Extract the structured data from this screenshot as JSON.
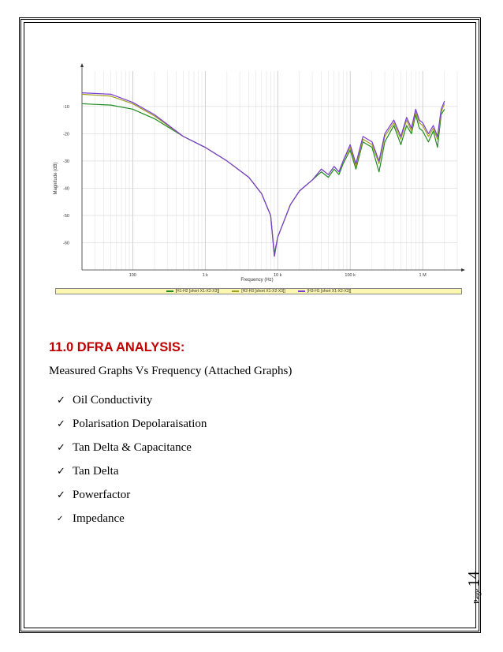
{
  "page": {
    "word": "Page",
    "number": "14"
  },
  "chart_data": {
    "type": "line",
    "xscale": "log",
    "xlim": [
      20,
      3000000
    ],
    "ylim": [
      -70,
      3
    ],
    "xlabel": "Frequency (Hz)",
    "ylabel": "Magnitude (dB)",
    "xticks": [
      100,
      1000,
      10000,
      100000,
      1000000
    ],
    "xtick_labels": [
      "100",
      "1 k",
      "10 k",
      "100 k",
      "1 M"
    ],
    "yticks": [
      -10,
      -20,
      -30,
      -40,
      -50,
      -60
    ],
    "ytick_labels": [
      "-10",
      "-20",
      "-30",
      "-40",
      "-50",
      "-60"
    ],
    "grid": true,
    "legend_position": "bottom",
    "series": [
      {
        "name": "[H1-H2 [short X1-X2-X3]]",
        "color": "#1e8a1e",
        "points": [
          [
            20,
            -9
          ],
          [
            50,
            -9.5
          ],
          [
            100,
            -11
          ],
          [
            200,
            -14.5
          ],
          [
            500,
            -21
          ],
          [
            1000,
            -25
          ],
          [
            2000,
            -30
          ],
          [
            4000,
            -36
          ],
          [
            6000,
            -42
          ],
          [
            8000,
            -50
          ],
          [
            9000,
            -64
          ],
          [
            10000,
            -58
          ],
          [
            15000,
            -46
          ],
          [
            20000,
            -41
          ],
          [
            30000,
            -37
          ],
          [
            40000,
            -34
          ],
          [
            50000,
            -36
          ],
          [
            60000,
            -33
          ],
          [
            70000,
            -35
          ],
          [
            80000,
            -31
          ],
          [
            100000,
            -26
          ],
          [
            120000,
            -33
          ],
          [
            150000,
            -23
          ],
          [
            200000,
            -25
          ],
          [
            250000,
            -34
          ],
          [
            300000,
            -23
          ],
          [
            400000,
            -17
          ],
          [
            500000,
            -24
          ],
          [
            600000,
            -17
          ],
          [
            700000,
            -20
          ],
          [
            800000,
            -13
          ],
          [
            900000,
            -18
          ],
          [
            1000000,
            -19
          ],
          [
            1200000,
            -23
          ],
          [
            1400000,
            -19
          ],
          [
            1600000,
            -25
          ],
          [
            1800000,
            -13
          ],
          [
            2000000,
            -11
          ]
        ]
      },
      {
        "name": "[H2-H3 [short X1-X2-X3]]",
        "color": "#a0a020",
        "points": [
          [
            20,
            -5.5
          ],
          [
            50,
            -6.2
          ],
          [
            100,
            -9
          ],
          [
            200,
            -13.5
          ],
          [
            500,
            -21
          ],
          [
            1000,
            -25
          ],
          [
            2000,
            -30
          ],
          [
            4000,
            -36
          ],
          [
            6000,
            -42
          ],
          [
            8000,
            -50
          ],
          [
            9000,
            -65
          ],
          [
            10000,
            -58
          ],
          [
            15000,
            -46
          ],
          [
            20000,
            -41
          ],
          [
            30000,
            -37
          ],
          [
            40000,
            -33
          ],
          [
            50000,
            -35
          ],
          [
            60000,
            -32
          ],
          [
            70000,
            -34
          ],
          [
            80000,
            -30
          ],
          [
            100000,
            -25
          ],
          [
            120000,
            -32
          ],
          [
            150000,
            -22
          ],
          [
            200000,
            -24
          ],
          [
            250000,
            -31
          ],
          [
            300000,
            -21
          ],
          [
            400000,
            -16
          ],
          [
            500000,
            -22
          ],
          [
            600000,
            -15
          ],
          [
            700000,
            -19
          ],
          [
            800000,
            -12
          ],
          [
            900000,
            -16
          ],
          [
            1000000,
            -17
          ],
          [
            1200000,
            -21
          ],
          [
            1400000,
            -18
          ],
          [
            1600000,
            -22
          ],
          [
            1800000,
            -12
          ],
          [
            2000000,
            -9
          ]
        ]
      },
      {
        "name": "[H3-H1 [short X1-X2-X3]]",
        "color": "#7a3cd6",
        "points": [
          [
            20,
            -5
          ],
          [
            50,
            -5.5
          ],
          [
            100,
            -8.5
          ],
          [
            200,
            -13
          ],
          [
            500,
            -21
          ],
          [
            1000,
            -25
          ],
          [
            2000,
            -30
          ],
          [
            4000,
            -36
          ],
          [
            6000,
            -42
          ],
          [
            8000,
            -50
          ],
          [
            9000,
            -65
          ],
          [
            10000,
            -58
          ],
          [
            15000,
            -46
          ],
          [
            20000,
            -41
          ],
          [
            30000,
            -37
          ],
          [
            40000,
            -33
          ],
          [
            50000,
            -35
          ],
          [
            60000,
            -32
          ],
          [
            70000,
            -34
          ],
          [
            80000,
            -30
          ],
          [
            100000,
            -24
          ],
          [
            120000,
            -31
          ],
          [
            150000,
            -21
          ],
          [
            200000,
            -23
          ],
          [
            250000,
            -30
          ],
          [
            300000,
            -20
          ],
          [
            400000,
            -15
          ],
          [
            500000,
            -21
          ],
          [
            600000,
            -14
          ],
          [
            700000,
            -18
          ],
          [
            800000,
            -11
          ],
          [
            900000,
            -15
          ],
          [
            1000000,
            -16
          ],
          [
            1200000,
            -20
          ],
          [
            1400000,
            -17
          ],
          [
            1600000,
            -21
          ],
          [
            1800000,
            -11
          ],
          [
            2000000,
            -8
          ]
        ]
      }
    ]
  },
  "section": {
    "title": "11.0 DFRA ANALYSIS:",
    "intro": "Measured Graphs Vs Frequency (Attached Graphs)",
    "items": [
      {
        "label": "Oil Conductivity"
      },
      {
        "label": "Polarisation Depolaraisation"
      },
      {
        "label": "Tan Delta & Capacitance"
      },
      {
        "label": "Tan Delta"
      },
      {
        "label": "Powerfactor"
      },
      {
        "label": "Impedance"
      }
    ],
    "check_icon": "checkmark-icon"
  }
}
